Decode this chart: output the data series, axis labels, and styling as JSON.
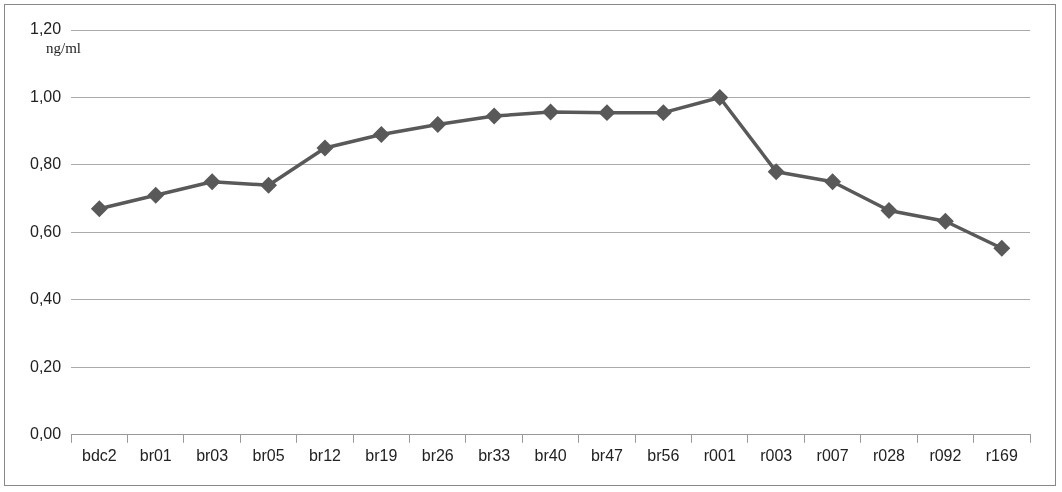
{
  "chart_data": {
    "type": "line",
    "ylabel": "ng/ml",
    "categories": [
      "bdc2",
      "br01",
      "br03",
      "br05",
      "br12",
      "br19",
      "br26",
      "br33",
      "br40",
      "br47",
      "br56",
      "r001",
      "r003",
      "r007",
      "r028",
      "r092",
      "r169"
    ],
    "series": [
      {
        "color": "#595959",
        "values": [
          0.67,
          0.71,
          0.75,
          0.74,
          0.85,
          0.89,
          0.92,
          0.945,
          0.957,
          0.955,
          0.955,
          1.0,
          0.78,
          0.75,
          0.665,
          0.633,
          0.553
        ]
      }
    ],
    "ylim": [
      0,
      1.2
    ],
    "yticks": [
      {
        "value": 0,
        "label": "0,00"
      },
      {
        "value": 0.2,
        "label": "0,20"
      },
      {
        "value": 0.4,
        "label": "0,40"
      },
      {
        "value": 0.6,
        "label": "0,60"
      },
      {
        "value": 0.8,
        "label": "0,80"
      },
      {
        "value": 1.0,
        "label": "1,00"
      },
      {
        "value": 1.2,
        "label": "1,20"
      }
    ],
    "grid": "y",
    "legend": false,
    "marker": "diamond",
    "line_style": "solid"
  }
}
